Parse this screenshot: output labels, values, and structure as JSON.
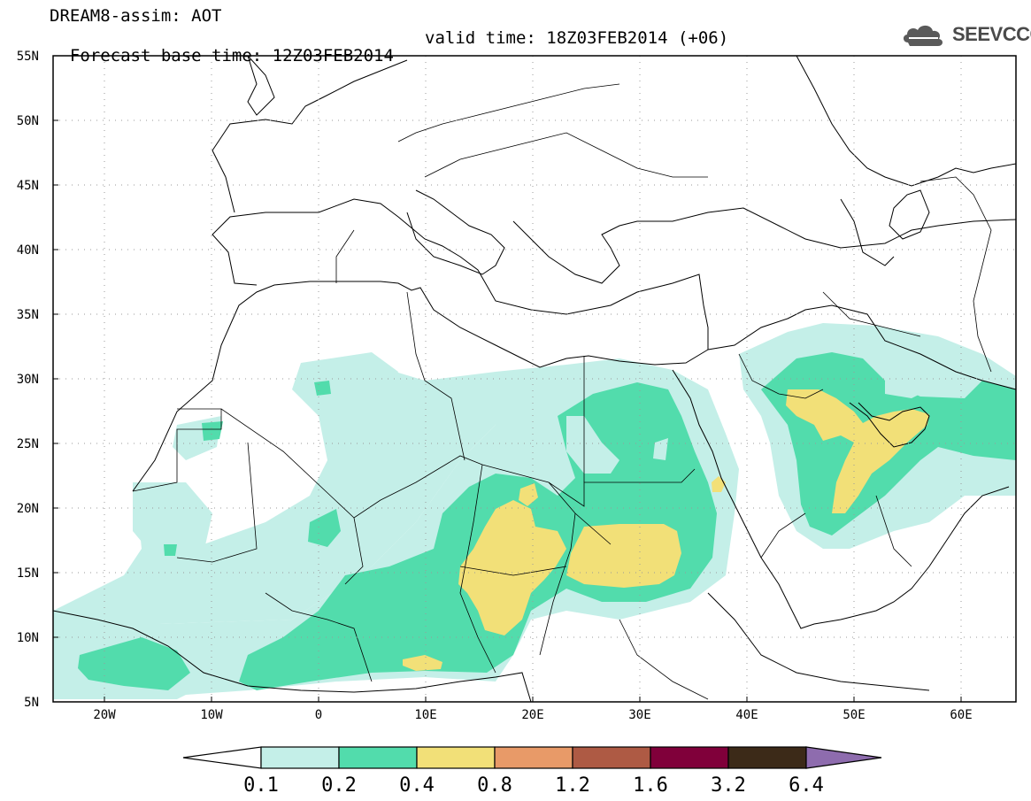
{
  "header": {
    "title": "DREAM8-assim: AOT",
    "base_time": "Forecast base time: 12Z03FEB2014",
    "valid_time": "valid time: 18Z03FEB2014 (+06)"
  },
  "logo": {
    "text": "SEEVCCC",
    "icon": "cloud-icon"
  },
  "map": {
    "lon_range": [
      -25,
      65
    ],
    "lat_range": [
      5,
      55
    ],
    "lat_labels": [
      "55N",
      "50N",
      "45N",
      "40N",
      "35N",
      "30N",
      "25N",
      "20N",
      "15N",
      "10N",
      "5N"
    ],
    "lon_labels": [
      "20W",
      "10W",
      "0",
      "10E",
      "20E",
      "30E",
      "40E",
      "50E",
      "60E"
    ],
    "grid": "dotted"
  },
  "colorbar": {
    "levels": [
      "0.1",
      "0.2",
      "0.4",
      "0.8",
      "1.2",
      "1.6",
      "3.2",
      "6.4"
    ],
    "colors": [
      "#ffffff",
      "#c4efe8",
      "#52dcac",
      "#f2e078",
      "#e89a68",
      "#ae5a44",
      "#80003a",
      "#3c2a18",
      "#8e6cae"
    ]
  }
}
